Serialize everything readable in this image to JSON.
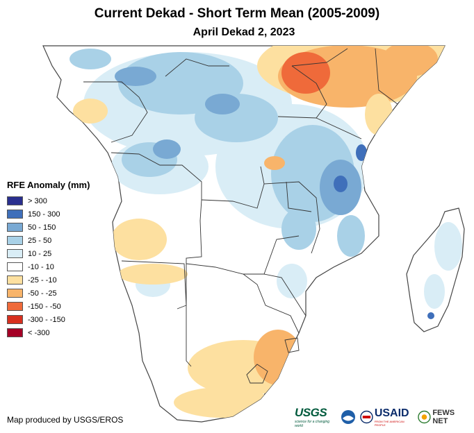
{
  "title": "Current Dekad - Short Term Mean (2005-2009)",
  "subtitle": "April Dekad 2, 2023",
  "legend": {
    "title": "RFE Anomaly (mm)",
    "classes": [
      {
        "label": "> 300",
        "color": "#2a2f8e"
      },
      {
        "label": "150 - 300",
        "color": "#3f6fba"
      },
      {
        "label": "50 - 150",
        "color": "#79a9d3"
      },
      {
        "label": "25 - 50",
        "color": "#a9d1e7"
      },
      {
        "label": "10 - 25",
        "color": "#d9edf6"
      },
      {
        "label": "-10 - 10",
        "color": "#ffffff"
      },
      {
        "label": "-25 - -10",
        "color": "#fde0a0"
      },
      {
        "label": "-50 - -25",
        "color": "#f8b46a"
      },
      {
        "label": "-150 - -50",
        "color": "#ef6a3a"
      },
      {
        "label": "-300 - -150",
        "color": "#d7301f"
      },
      {
        "label": "< -300",
        "color": "#a50026"
      }
    ]
  },
  "credit": "Map produced by USGS/EROS",
  "logos": {
    "usgs": "USGS",
    "usgs_tagline": "science for a changing world",
    "usaid": "USAID",
    "usaid_tagline": "FROM THE AMERICAN PEOPLE",
    "fews": "FEWS NET"
  }
}
